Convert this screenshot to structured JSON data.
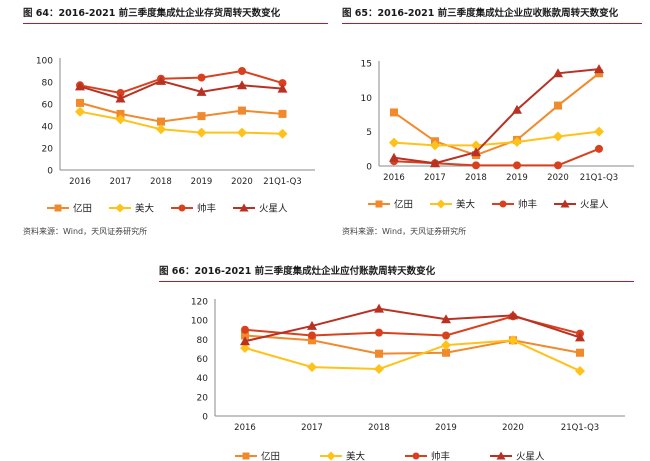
{
  "colors": {
    "亿田": "#f08a2c",
    "美大": "#ffc21a",
    "帅丰": "#d9411e",
    "火星人": "#b83224"
  },
  "charts": [
    {
      "title": "图 64：2016-2021 前三季度集成灶企业存货周转天数变化",
      "source": "资料来源：Wind，天风证券研究所",
      "chart_data": {
        "type": "line",
        "categories": [
          "2016",
          "2017",
          "2018",
          "2019",
          "2020",
          "21Q1-Q3"
        ],
        "ylim": [
          0,
          100
        ],
        "yticks": [
          0,
          20,
          40,
          60,
          80,
          100
        ],
        "grid": false,
        "legend_position": "bottom",
        "series": [
          {
            "name": "亿田",
            "marker": "square",
            "values": [
              61,
              51,
              44,
              49,
              54,
              51
            ]
          },
          {
            "name": "美大",
            "marker": "diamond",
            "values": [
              53,
              46,
              37,
              34,
              34,
              33
            ]
          },
          {
            "name": "帅丰",
            "marker": "circle",
            "values": [
              77,
              70,
              83,
              84,
              90,
              79
            ]
          },
          {
            "name": "火星人",
            "marker": "triangle",
            "values": [
              76,
              65,
              81,
              71,
              77,
              74
            ]
          }
        ]
      }
    },
    {
      "title": "图 65：2016-2021 前三季度集成灶企业应收账款周转天数变化",
      "source": "资料来源：Wind，天风证券研究所",
      "chart_data": {
        "type": "line",
        "categories": [
          "2016",
          "2017",
          "2018",
          "2019",
          "2020",
          "21Q1-Q3"
        ],
        "ylim": [
          0,
          15
        ],
        "yticks": [
          0,
          5,
          10,
          15
        ],
        "grid": false,
        "legend_position": "bottom",
        "series": [
          {
            "name": "亿田",
            "marker": "square",
            "values": [
              7.8,
              3.6,
              1.6,
              3.8,
              8.8,
              13.5
            ]
          },
          {
            "name": "美大",
            "marker": "diamond",
            "values": [
              3.4,
              3.0,
              3.0,
              3.5,
              4.3,
              5.0
            ]
          },
          {
            "name": "帅丰",
            "marker": "circle",
            "values": [
              0.7,
              0.4,
              0.1,
              0.1,
              0.1,
              2.5
            ]
          },
          {
            "name": "火星人",
            "marker": "triangle",
            "values": [
              1.2,
              0.4,
              2.0,
              8.2,
              13.5,
              14.1
            ]
          }
        ]
      }
    },
    {
      "title": "图 66：2016-2021 前三季度集成灶企业应付账款周转天数变化",
      "source": "",
      "chart_data": {
        "type": "line",
        "categories": [
          "2016",
          "2017",
          "2018",
          "2019",
          "2020",
          "21Q1-Q3"
        ],
        "ylim": [
          0,
          120
        ],
        "yticks": [
          0,
          20,
          40,
          60,
          80,
          100,
          120
        ],
        "grid": false,
        "legend_position": "bottom",
        "series": [
          {
            "name": "亿田",
            "marker": "square",
            "values": [
              84,
              79,
              65,
              66,
              79,
              66
            ]
          },
          {
            "name": "美大",
            "marker": "diamond",
            "values": [
              71,
              51,
              49,
              74,
              79,
              47
            ]
          },
          {
            "name": "帅丰",
            "marker": "circle",
            "values": [
              90,
              84,
              87,
              84,
              104,
              86
            ]
          },
          {
            "name": "火星人",
            "marker": "triangle",
            "values": [
              78,
              94,
              112,
              101,
              105,
              82
            ]
          }
        ]
      }
    }
  ]
}
